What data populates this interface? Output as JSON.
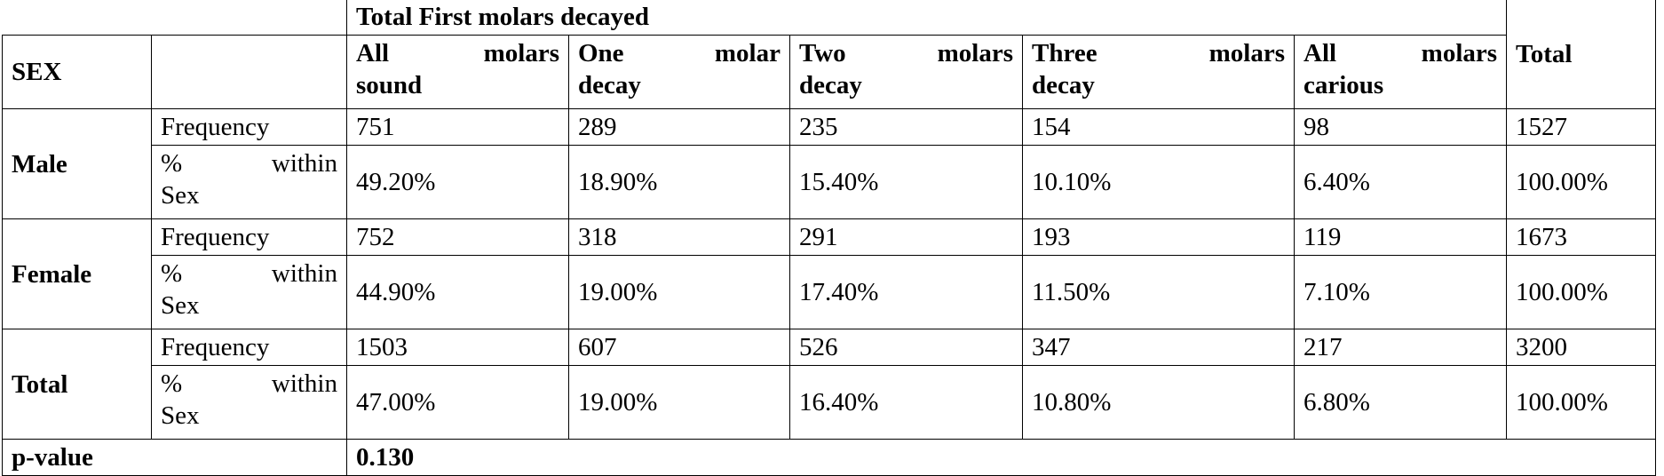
{
  "table": {
    "group_header": "Total First molars decayed",
    "col_sex": "SEX",
    "columns": [
      "All molars sound",
      "One molar decay",
      "Two molars decay",
      "Three molars decay",
      "All molars carious"
    ],
    "col_total": "Total",
    "rows": [
      {
        "group": "Male",
        "freq_label": "Frequency",
        "freq": [
          "751",
          "289",
          "235",
          "154",
          "98",
          "1527"
        ],
        "pct_label_1": "% within",
        "pct_label_2": "Sex",
        "pct": [
          "49.20%",
          "18.90%",
          "15.40%",
          "10.10%",
          "6.40%",
          "100.00%"
        ]
      },
      {
        "group": "Female",
        "freq_label": "Frequency",
        "freq": [
          "752",
          "318",
          "291",
          "193",
          "119",
          "1673"
        ],
        "pct_label_1": "% within",
        "pct_label_2": "Sex",
        "pct": [
          "44.90%",
          "19.00%",
          "17.40%",
          "11.50%",
          "7.10%",
          "100.00%"
        ]
      },
      {
        "group": "Total",
        "freq_label": "Frequency",
        "freq": [
          "1503",
          "607",
          "526",
          "347",
          "217",
          "3200"
        ],
        "pct_label_1": "% within",
        "pct_label_2": "Sex",
        "pct": [
          "47.00%",
          "19.00%",
          "16.40%",
          "10.80%",
          "6.80%",
          "100.00%"
        ]
      }
    ],
    "pvalue_label": "p-value",
    "pvalue": "0.130"
  }
}
